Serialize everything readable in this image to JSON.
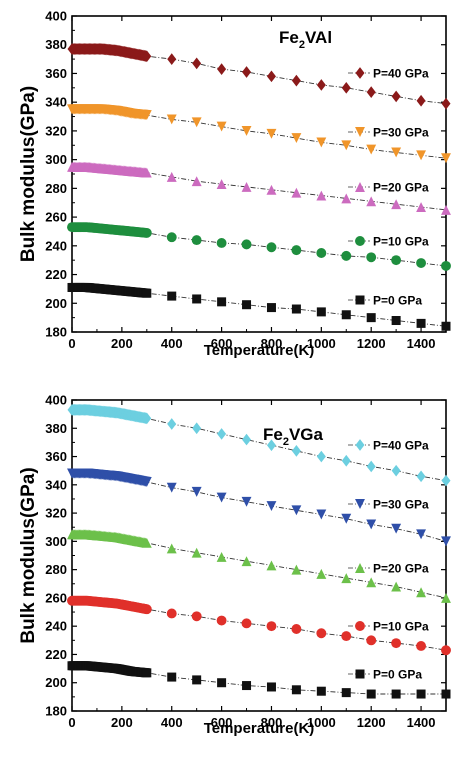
{
  "chart_data": [
    {
      "type": "scatter",
      "title_main": "Fe",
      "title_sub": "2",
      "title_rest": "VAl",
      "xlabel": "Temperature(K)",
      "ylabel": "Bulk modulus(GPa)",
      "xlim": [
        0,
        1500
      ],
      "ylim": [
        180,
        400
      ],
      "xticks": [
        0,
        200,
        400,
        600,
        800,
        1000,
        1200,
        1400
      ],
      "yticks": [
        180,
        200,
        220,
        240,
        260,
        280,
        300,
        320,
        340,
        360,
        380,
        400
      ],
      "legend_position": "right",
      "grid": false,
      "series": [
        {
          "name": "P=40 GPa",
          "marker": "diamond",
          "color": "#8B1A1A",
          "x": [
            400,
            500,
            600,
            700,
            800,
            900,
            1000,
            1100,
            1200,
            1300,
            1400,
            1500
          ],
          "y": [
            370,
            367,
            363,
            361,
            358,
            355,
            352,
            350,
            347,
            344,
            341,
            339
          ],
          "dense": {
            "x0": 0,
            "x1": 300,
            "y": [
              377,
              377,
              377,
              376,
              374,
              372
            ]
          }
        },
        {
          "name": "P=30 GPa",
          "marker": "triangle-down",
          "color": "#F0952A",
          "x": [
            400,
            500,
            600,
            700,
            800,
            900,
            1000,
            1100,
            1200,
            1300,
            1400,
            1500
          ],
          "y": [
            328,
            326,
            323,
            320,
            318,
            315,
            312,
            310,
            307,
            305,
            303,
            301
          ],
          "dense": {
            "x0": 0,
            "x1": 300,
            "y": [
              335,
              335,
              335,
              334,
              332,
              331
            ]
          }
        },
        {
          "name": "P=20 GPa",
          "marker": "triangle-up",
          "color": "#CC6BBF",
          "x": [
            400,
            500,
            600,
            700,
            800,
            900,
            1000,
            1100,
            1200,
            1300,
            1400,
            1500
          ],
          "y": [
            288,
            285,
            283,
            281,
            279,
            277,
            275,
            273,
            271,
            269,
            267,
            265
          ],
          "dense": {
            "x0": 0,
            "x1": 300,
            "y": [
              295,
              295,
              294,
              293,
              292,
              291
            ]
          }
        },
        {
          "name": "P=10 GPa",
          "marker": "circle",
          "color": "#1E8E3E",
          "x": [
            400,
            500,
            600,
            700,
            800,
            900,
            1000,
            1100,
            1200,
            1300,
            1400,
            1500
          ],
          "y": [
            246,
            244,
            242,
            241,
            239,
            237,
            235,
            233,
            232,
            230,
            228,
            226
          ],
          "dense": {
            "x0": 0,
            "x1": 300,
            "y": [
              253,
              253,
              252,
              251,
              250,
              249
            ]
          }
        },
        {
          "name": "P=0 GPa",
          "marker": "square",
          "color": "#111111",
          "x": [
            400,
            500,
            600,
            700,
            800,
            900,
            1000,
            1100,
            1200,
            1300,
            1400,
            1500
          ],
          "y": [
            205,
            203,
            201,
            199,
            197,
            196,
            194,
            192,
            190,
            188,
            186,
            184
          ],
          "dense": {
            "x0": 0,
            "x1": 300,
            "y": [
              211,
              211,
              210,
              209,
              208,
              207
            ]
          }
        }
      ]
    },
    {
      "type": "scatter",
      "title_main": "Fe",
      "title_sub": "2",
      "title_rest": "VGa",
      "xlabel": "Temperature(K)",
      "ylabel": "Bulk modulus(GPa)",
      "xlim": [
        0,
        1500
      ],
      "ylim": [
        180,
        400
      ],
      "xticks": [
        0,
        200,
        400,
        600,
        800,
        1000,
        1200,
        1400
      ],
      "yticks": [
        180,
        200,
        220,
        240,
        260,
        280,
        300,
        320,
        340,
        360,
        380,
        400
      ],
      "legend_position": "right",
      "grid": false,
      "series": [
        {
          "name": "P=40 GPa",
          "marker": "diamond",
          "color": "#6CCFE0",
          "x": [
            400,
            500,
            600,
            700,
            800,
            900,
            1000,
            1100,
            1200,
            1300,
            1400,
            1500
          ],
          "y": [
            383,
            380,
            376,
            372,
            368,
            364,
            360,
            357,
            353,
            350,
            346,
            343
          ],
          "dense": {
            "x0": 0,
            "x1": 300,
            "y": [
              393,
              393,
              392,
              391,
              389,
              387
            ]
          }
        },
        {
          "name": "P=30 GPa",
          "marker": "triangle-down",
          "color": "#2F4FA8",
          "x": [
            400,
            500,
            600,
            700,
            800,
            900,
            1000,
            1100,
            1200,
            1300,
            1400,
            1500
          ],
          "y": [
            338,
            335,
            331,
            328,
            325,
            322,
            319,
            316,
            312,
            309,
            305,
            300
          ],
          "dense": {
            "x0": 0,
            "x1": 300,
            "y": [
              348,
              348,
              347,
              346,
              344,
              342
            ]
          }
        },
        {
          "name": "P=20 GPa",
          "marker": "triangle-up",
          "color": "#6CC04A",
          "x": [
            400,
            500,
            600,
            700,
            800,
            900,
            1000,
            1100,
            1200,
            1300,
            1400,
            1500
          ],
          "y": [
            295,
            292,
            289,
            286,
            283,
            280,
            277,
            274,
            271,
            268,
            264,
            260
          ],
          "dense": {
            "x0": 0,
            "x1": 300,
            "y": [
              305,
              305,
              304,
              303,
              301,
              299
            ]
          }
        },
        {
          "name": "P=10 GPa",
          "marker": "circle",
          "color": "#E0302A",
          "x": [
            400,
            500,
            600,
            700,
            800,
            900,
            1000,
            1100,
            1200,
            1300,
            1400,
            1500
          ],
          "y": [
            249,
            247,
            244,
            242,
            240,
            238,
            235,
            233,
            230,
            228,
            226,
            223
          ],
          "dense": {
            "x0": 0,
            "x1": 300,
            "y": [
              258,
              258,
              257,
              256,
              254,
              252
            ]
          }
        },
        {
          "name": "P=0 GPa",
          "marker": "square",
          "color": "#111111",
          "x": [
            400,
            500,
            600,
            700,
            800,
            900,
            1000,
            1100,
            1200,
            1300,
            1400,
            1500
          ],
          "y": [
            204,
            202,
            200,
            198,
            197,
            195,
            194,
            193,
            192,
            192,
            192,
            192
          ],
          "dense": {
            "x0": 0,
            "x1": 300,
            "y": [
              212,
              212,
              211,
              210,
              208,
              207
            ]
          }
        }
      ]
    }
  ]
}
